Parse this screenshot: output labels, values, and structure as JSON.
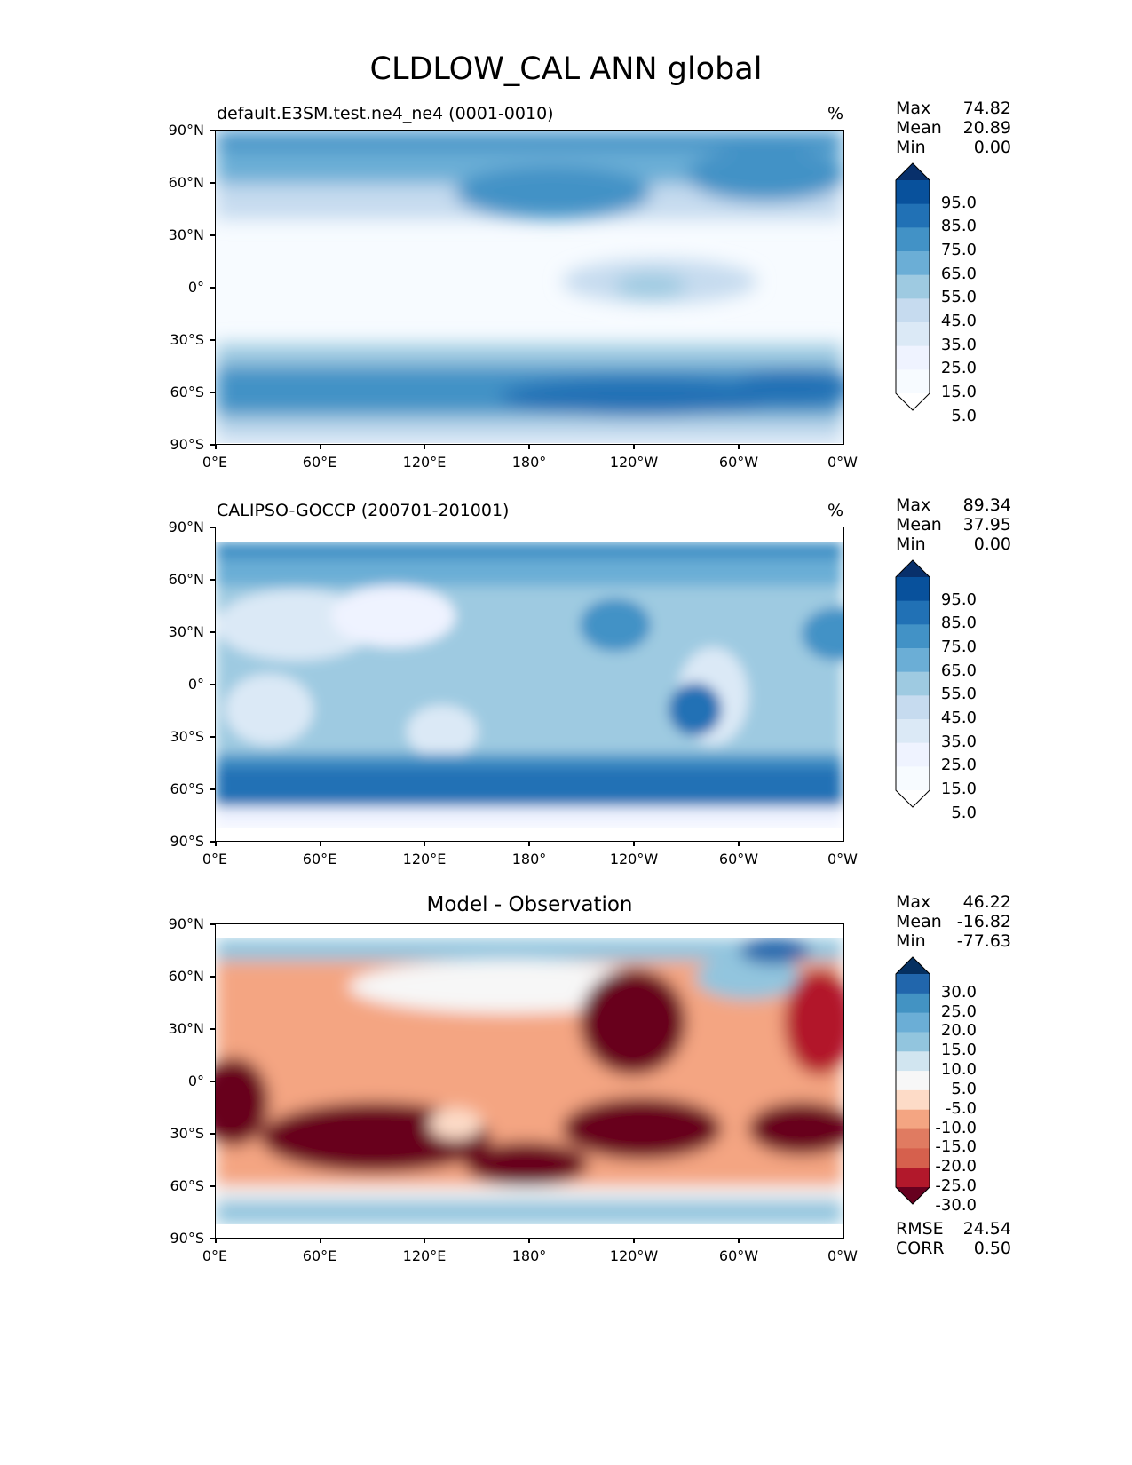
{
  "title": "CLDLOW_CAL ANN global",
  "lat_labels": [
    "90°N",
    "60°N",
    "30°N",
    "0°",
    "30°S",
    "60°S",
    "90°S"
  ],
  "lon_labels": [
    "0°E",
    "60°E",
    "120°E",
    "180°",
    "120°W",
    "60°W",
    "0°W"
  ],
  "panels": [
    {
      "title": "default.E3SM.test.ne4_ne4 (0001-0010)",
      "units": "%",
      "stats": {
        "max_label": "Max",
        "max": "74.82",
        "mean_label": "Mean",
        "mean": "20.89",
        "min_label": "Min",
        "min": "0.00"
      },
      "colorbar_labels": [
        "95.0",
        "85.0",
        "75.0",
        "65.0",
        "55.0",
        "45.0",
        "35.0",
        "25.0",
        "15.0",
        "5.0"
      ],
      "colorbar_colors": [
        "#08306b",
        "#08519c",
        "#2171b5",
        "#4292c6",
        "#6baed6",
        "#9ecae1",
        "#c6dbef",
        "#dbe9f6",
        "#eff3ff",
        "#f7fbff",
        "#ffffff"
      ]
    },
    {
      "title": "CALIPSO-GOCCP (200701-201001)",
      "units": "%",
      "stats": {
        "max_label": "Max",
        "max": "89.34",
        "mean_label": "Mean",
        "mean": "37.95",
        "min_label": "Min",
        "min": "0.00"
      },
      "colorbar_labels": [
        "95.0",
        "85.0",
        "75.0",
        "65.0",
        "55.0",
        "45.0",
        "35.0",
        "25.0",
        "15.0",
        "5.0"
      ],
      "colorbar_colors": [
        "#08306b",
        "#08519c",
        "#2171b5",
        "#4292c6",
        "#6baed6",
        "#9ecae1",
        "#c6dbef",
        "#dbe9f6",
        "#eff3ff",
        "#f7fbff",
        "#ffffff"
      ]
    },
    {
      "title": "Model - Observation",
      "stats": {
        "max_label": "Max",
        "max": "46.22",
        "mean_label": "Mean",
        "mean": "-16.82",
        "min_label": "Min",
        "min": "-77.63"
      },
      "colorbar_labels": [
        "30.0",
        "25.0",
        "20.0",
        "15.0",
        "10.0",
        "5.0",
        "-5.0",
        "-10.0",
        "-15.0",
        "-20.0",
        "-25.0",
        "-30.0"
      ],
      "colorbar_colors": [
        "#053061",
        "#2166ac",
        "#4393c3",
        "#6baed6",
        "#92c5de",
        "#d1e5f0",
        "#f7f7f7",
        "#fddbc7",
        "#f4a582",
        "#e07b61",
        "#d6604d",
        "#b2182b",
        "#67001f"
      ],
      "rmse_label": "RMSE",
      "rmse": "24.54",
      "corr_label": "CORR",
      "corr": "0.50"
    }
  ]
}
